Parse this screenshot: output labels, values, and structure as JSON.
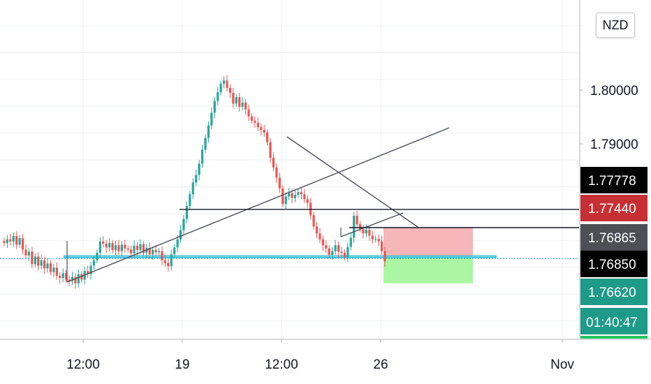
{
  "chart_data": {
    "type": "candlestick",
    "currency": "NZD",
    "y_ticks": [
      {
        "value": 1.8,
        "label": "1.80000"
      },
      {
        "value": 1.79,
        "label": "1.79000"
      }
    ],
    "ylim": [
      1.7537,
      1.8168
    ],
    "x_ticks": [
      "12:00",
      "19",
      "12:00",
      "26",
      "Nov"
    ],
    "levels": {
      "resistance": {
        "value": 1.77778,
        "label": "1.77778"
      },
      "stop": {
        "value": 1.7744,
        "label": "1.77440"
      },
      "current": {
        "value": 1.76865,
        "label": "1.76865",
        "countdown": "01:40:47"
      },
      "support_line": {
        "value": 1.7685,
        "label": "1.76850"
      },
      "target": {
        "value": 1.7662,
        "label": "1.76620"
      }
    },
    "position": {
      "direction": "short",
      "entry": 1.769,
      "stop": 1.7745,
      "target": 1.764
    },
    "candles": [
      1.7715,
      1.7722,
      1.7718,
      1.7728,
      1.7712,
      1.7724,
      1.7703,
      1.7692,
      1.7699,
      1.7676,
      1.769,
      1.7673,
      1.7683,
      1.7668,
      1.7677,
      1.7661,
      1.7669,
      1.7654,
      1.765,
      1.7659,
      1.7647,
      1.7644,
      1.7652,
      1.764,
      1.7657,
      1.7647,
      1.7663,
      1.7657,
      1.7673,
      1.7683,
      1.7697,
      1.7718,
      1.7714,
      1.7707,
      1.7715,
      1.7702,
      1.7711,
      1.77,
      1.7712,
      1.7705,
      1.7703,
      1.7696,
      1.771,
      1.7702,
      1.7713,
      1.7697,
      1.7706,
      1.7694,
      1.7702,
      1.7698,
      1.77,
      1.7683,
      1.7678,
      1.7672,
      1.7694,
      1.7707,
      1.7722,
      1.7739,
      1.776,
      1.7784,
      1.7806,
      1.7828,
      1.7842,
      1.7863,
      1.7889,
      1.7911,
      1.7934,
      1.7958,
      1.798,
      1.7996,
      1.8012,
      1.8018,
      1.8004,
      1.7995,
      1.7975,
      1.7987,
      1.7969,
      1.7977,
      1.7964,
      1.7951,
      1.7943,
      1.7939,
      1.7931,
      1.7926,
      1.7921,
      1.7903,
      1.7874,
      1.7856,
      1.7837,
      1.7817,
      1.7788,
      1.7802,
      1.7808,
      1.7799,
      1.7805,
      1.781,
      1.7806,
      1.7797,
      1.779,
      1.7767,
      1.7746,
      1.7733,
      1.7722,
      1.7711,
      1.7705,
      1.7693,
      1.77,
      1.7711,
      1.7699,
      1.7697,
      1.7689,
      1.7708,
      1.7725,
      1.7766,
      1.775,
      1.7741,
      1.7733,
      1.774,
      1.7729,
      1.7722,
      1.7723,
      1.7718,
      1.77,
      1.7681
    ]
  }
}
